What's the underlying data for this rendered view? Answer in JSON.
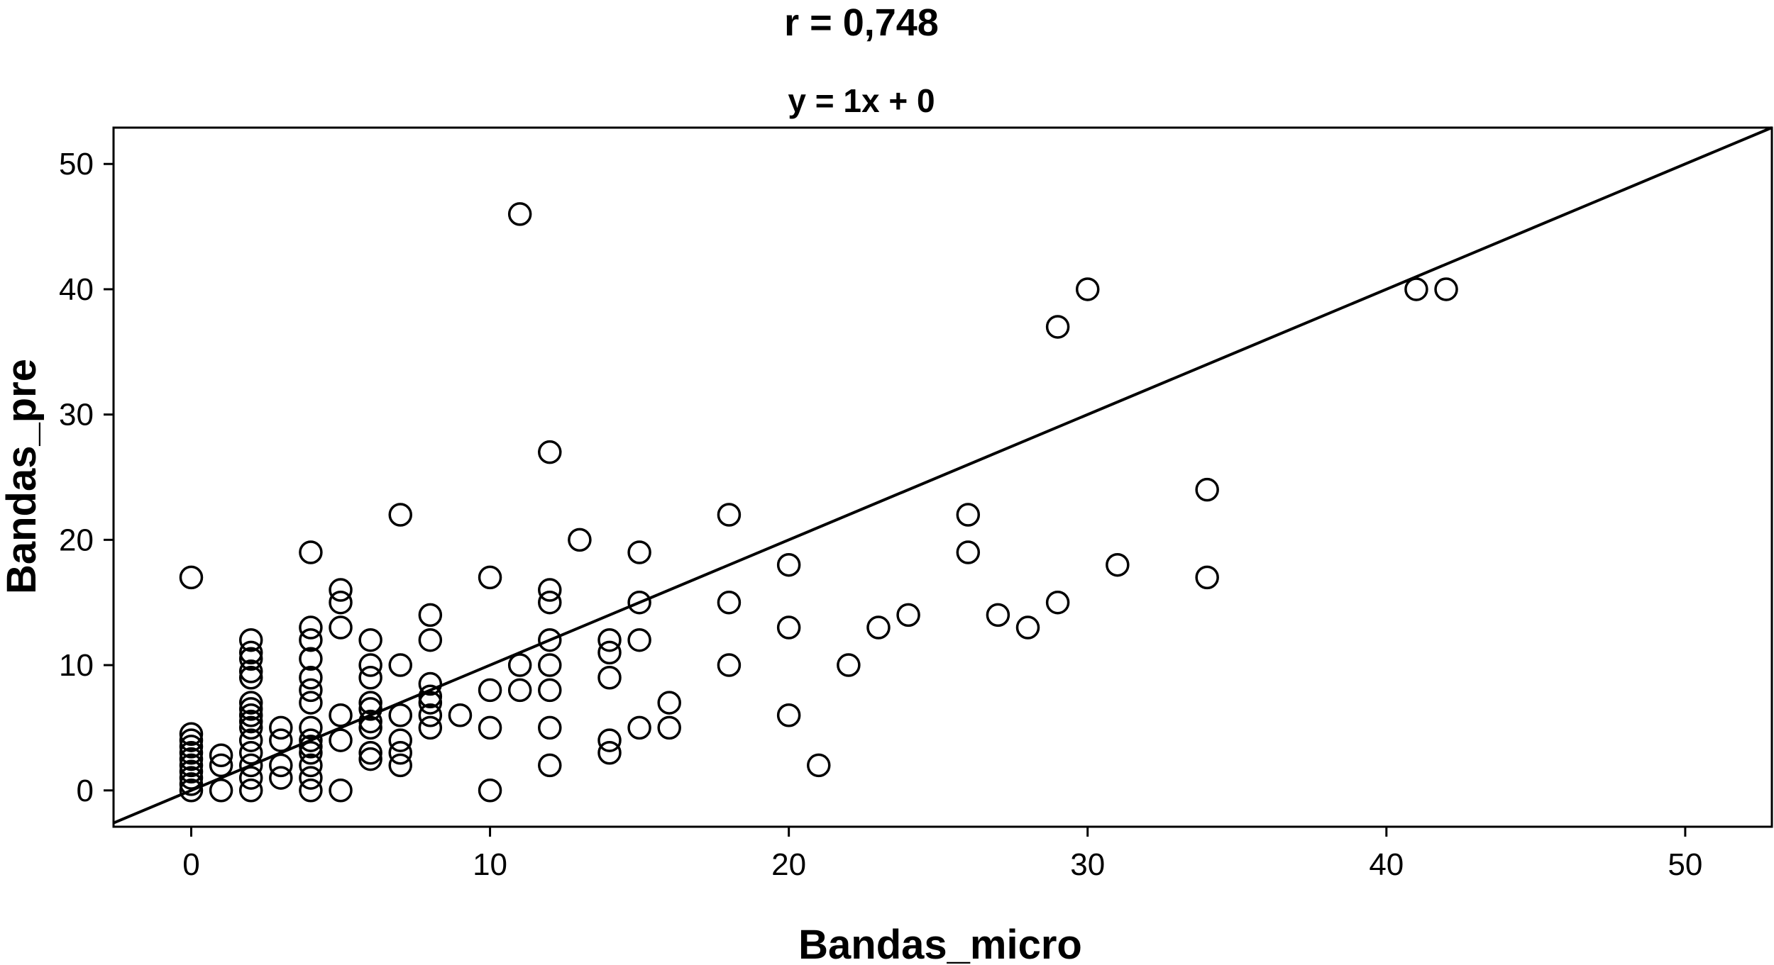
{
  "chart_data": {
    "type": "scatter",
    "title": "r = 0,748",
    "subtitle": "y = 1x + 0",
    "xlabel": "Bandas_micro",
    "ylabel": "Bandas_pre",
    "xlim": [
      -2.6,
      52.9
    ],
    "ylim": [
      -2.9,
      52.9
    ],
    "xticks": [
      0,
      10,
      20,
      30,
      40,
      50
    ],
    "yticks": [
      0,
      10,
      20,
      30,
      40,
      50
    ],
    "grid": false,
    "marker": "open-circle",
    "fit_line": {
      "slope": 1,
      "intercept": 0
    },
    "points": [
      [
        0,
        0
      ],
      [
        0,
        0.5
      ],
      [
        0,
        1
      ],
      [
        0,
        1.5
      ],
      [
        0,
        2
      ],
      [
        0,
        2.5
      ],
      [
        0,
        3
      ],
      [
        0,
        3.5
      ],
      [
        0,
        4
      ],
      [
        0,
        4.5
      ],
      [
        0,
        17
      ],
      [
        1,
        0
      ],
      [
        1,
        2
      ],
      [
        1,
        2.8
      ],
      [
        2,
        0
      ],
      [
        2,
        1
      ],
      [
        2,
        2
      ],
      [
        2,
        3
      ],
      [
        2,
        4
      ],
      [
        2,
        5
      ],
      [
        2,
        5.5
      ],
      [
        2,
        6
      ],
      [
        2,
        6.5
      ],
      [
        2,
        7
      ],
      [
        2,
        9
      ],
      [
        2,
        9.5
      ],
      [
        2,
        10.5
      ],
      [
        2,
        11
      ],
      [
        2,
        12
      ],
      [
        3,
        1
      ],
      [
        3,
        2
      ],
      [
        3,
        4
      ],
      [
        3,
        5
      ],
      [
        4,
        0
      ],
      [
        4,
        1
      ],
      [
        4,
        2
      ],
      [
        4,
        3
      ],
      [
        4,
        3.5
      ],
      [
        4,
        4
      ],
      [
        4,
        5
      ],
      [
        4,
        7
      ],
      [
        4,
        8
      ],
      [
        4,
        9
      ],
      [
        4,
        10.5
      ],
      [
        4,
        12
      ],
      [
        4,
        13
      ],
      [
        4,
        19
      ],
      [
        5,
        0
      ],
      [
        5,
        4
      ],
      [
        5,
        6
      ],
      [
        5,
        13
      ],
      [
        5,
        15
      ],
      [
        5,
        16
      ],
      [
        6,
        2.5
      ],
      [
        6,
        3
      ],
      [
        6,
        5
      ],
      [
        6,
        5.5
      ],
      [
        6,
        6.5
      ],
      [
        6,
        7
      ],
      [
        6,
        9
      ],
      [
        6,
        10
      ],
      [
        6,
        12
      ],
      [
        7,
        2
      ],
      [
        7,
        3
      ],
      [
        7,
        4
      ],
      [
        7,
        6
      ],
      [
        7,
        10
      ],
      [
        7,
        22
      ],
      [
        8,
        5
      ],
      [
        8,
        6
      ],
      [
        8,
        7
      ],
      [
        8,
        7.5
      ],
      [
        8,
        8.5
      ],
      [
        8,
        12
      ],
      [
        8,
        14
      ],
      [
        9,
        6
      ],
      [
        10,
        0
      ],
      [
        10,
        5
      ],
      [
        10,
        8
      ],
      [
        10,
        17
      ],
      [
        11,
        8
      ],
      [
        11,
        10
      ],
      [
        11,
        46
      ],
      [
        12,
        2
      ],
      [
        12,
        5
      ],
      [
        12,
        8
      ],
      [
        12,
        10
      ],
      [
        12,
        12
      ],
      [
        12,
        15
      ],
      [
        12,
        16
      ],
      [
        12,
        27
      ],
      [
        13,
        20
      ],
      [
        14,
        3
      ],
      [
        14,
        4
      ],
      [
        14,
        9
      ],
      [
        14,
        11
      ],
      [
        14,
        12
      ],
      [
        15,
        5
      ],
      [
        15,
        12
      ],
      [
        15,
        15
      ],
      [
        15,
        19
      ],
      [
        16,
        5
      ],
      [
        16,
        7
      ],
      [
        18,
        10
      ],
      [
        18,
        15
      ],
      [
        18,
        22
      ],
      [
        20,
        6
      ],
      [
        20,
        13
      ],
      [
        20,
        18
      ],
      [
        21,
        2
      ],
      [
        22,
        10
      ],
      [
        23,
        13
      ],
      [
        24,
        14
      ],
      [
        26,
        19
      ],
      [
        26,
        22
      ],
      [
        27,
        14
      ],
      [
        28,
        13
      ],
      [
        29,
        15
      ],
      [
        29,
        37
      ],
      [
        30,
        40
      ],
      [
        31,
        18
      ],
      [
        34,
        17
      ],
      [
        34,
        24
      ],
      [
        41,
        40
      ],
      [
        42,
        40
      ]
    ]
  }
}
